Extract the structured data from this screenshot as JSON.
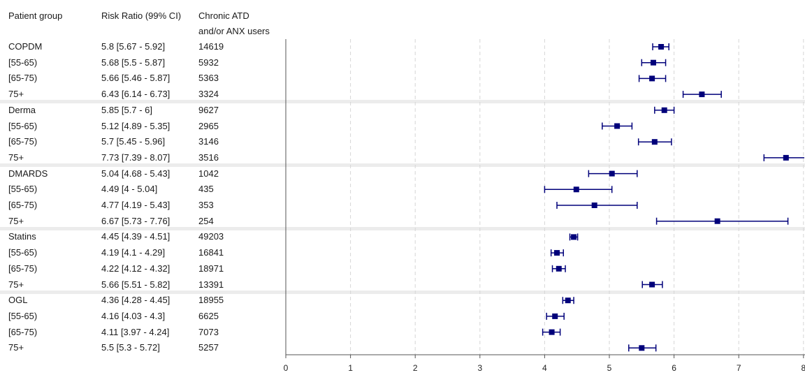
{
  "header": {
    "group_label": "Patient group",
    "rr_label": "Risk Ratio (99% CI)",
    "users_label_line1": "Chronic ATD",
    "users_label_line2": "and/or ANX users"
  },
  "rows": [
    {
      "group": "COPDM",
      "rr_text": "5.8 [5.67 - 5.92]",
      "users": "14619",
      "rr": 5.8,
      "lo": 5.67,
      "hi": 5.92,
      "is_total": true
    },
    {
      "group": "[55-65)",
      "rr_text": "5.68 [5.5 - 5.87]",
      "users": "5932",
      "rr": 5.68,
      "lo": 5.5,
      "hi": 5.87,
      "is_total": false
    },
    {
      "group": "[65-75)",
      "rr_text": "5.66 [5.46 - 5.87]",
      "users": "5363",
      "rr": 5.66,
      "lo": 5.46,
      "hi": 5.87,
      "is_total": false
    },
    {
      "group": "75+",
      "rr_text": "6.43 [6.14 - 6.73]",
      "users": "3324",
      "rr": 6.43,
      "lo": 6.14,
      "hi": 6.73,
      "is_total": false
    },
    {
      "group": "Derma",
      "rr_text": "5.85 [5.7 - 6]",
      "users": "9627",
      "rr": 5.85,
      "lo": 5.7,
      "hi": 6.0,
      "is_total": true
    },
    {
      "group": "[55-65)",
      "rr_text": "5.12 [4.89 - 5.35]",
      "users": "2965",
      "rr": 5.12,
      "lo": 4.89,
      "hi": 5.35,
      "is_total": false
    },
    {
      "group": "[65-75)",
      "rr_text": "5.7 [5.45 - 5.96]",
      "users": "3146",
      "rr": 5.7,
      "lo": 5.45,
      "hi": 5.96,
      "is_total": false
    },
    {
      "group": "75+",
      "rr_text": "7.73 [7.39 - 8.07]",
      "users": "3516",
      "rr": 7.73,
      "lo": 7.39,
      "hi": 8.07,
      "is_total": false
    },
    {
      "group": "DMARDS",
      "rr_text": "5.04 [4.68 - 5.43]",
      "users": "1042",
      "rr": 5.04,
      "lo": 4.68,
      "hi": 5.43,
      "is_total": true
    },
    {
      "group": "[55-65)",
      "rr_text": "4.49 [4 - 5.04]",
      "users": "435",
      "rr": 4.49,
      "lo": 4.0,
      "hi": 5.04,
      "is_total": false
    },
    {
      "group": "[65-75)",
      "rr_text": "4.77 [4.19 - 5.43]",
      "users": "353",
      "rr": 4.77,
      "lo": 4.19,
      "hi": 5.43,
      "is_total": false
    },
    {
      "group": "75+",
      "rr_text": "6.67 [5.73 - 7.76]",
      "users": "254",
      "rr": 6.67,
      "lo": 5.73,
      "hi": 7.76,
      "is_total": false
    },
    {
      "group": "Statins",
      "rr_text": "4.45 [4.39 - 4.51]",
      "users": "49203",
      "rr": 4.45,
      "lo": 4.39,
      "hi": 4.51,
      "is_total": true
    },
    {
      "group": "[55-65)",
      "rr_text": "4.19 [4.1 - 4.29]",
      "users": "16841",
      "rr": 4.19,
      "lo": 4.1,
      "hi": 4.29,
      "is_total": false
    },
    {
      "group": "[65-75)",
      "rr_text": "4.22 [4.12 - 4.32]",
      "users": "18971",
      "rr": 4.22,
      "lo": 4.12,
      "hi": 4.32,
      "is_total": false
    },
    {
      "group": "75+",
      "rr_text": "5.66 [5.51 - 5.82]",
      "users": "13391",
      "rr": 5.66,
      "lo": 5.51,
      "hi": 5.82,
      "is_total": false
    },
    {
      "group": "OGL",
      "rr_text": "4.36 [4.28 - 4.45]",
      "users": "18955",
      "rr": 4.36,
      "lo": 4.28,
      "hi": 4.45,
      "is_total": true
    },
    {
      "group": "[55-65)",
      "rr_text": "4.16 [4.03 - 4.3]",
      "users": "6625",
      "rr": 4.16,
      "lo": 4.03,
      "hi": 4.3,
      "is_total": false
    },
    {
      "group": "[65-75)",
      "rr_text": "4.11 [3.97 - 4.24]",
      "users": "7073",
      "rr": 4.11,
      "lo": 3.97,
      "hi": 4.24,
      "is_total": false
    },
    {
      "group": "75+",
      "rr_text": "5.5 [5.3 - 5.72]",
      "users": "5257",
      "rr": 5.5,
      "lo": 5.3,
      "hi": 5.72,
      "is_total": false
    }
  ],
  "chart_data": {
    "type": "forest",
    "title": "",
    "xlabel": "",
    "ylabel": "",
    "xlim": [
      0,
      8
    ],
    "xticks": [
      "0",
      "1",
      "2",
      "3",
      "4",
      "5",
      "6",
      "7",
      "8"
    ],
    "grid": "vertical-dashed",
    "marker_color": "#00007a"
  }
}
